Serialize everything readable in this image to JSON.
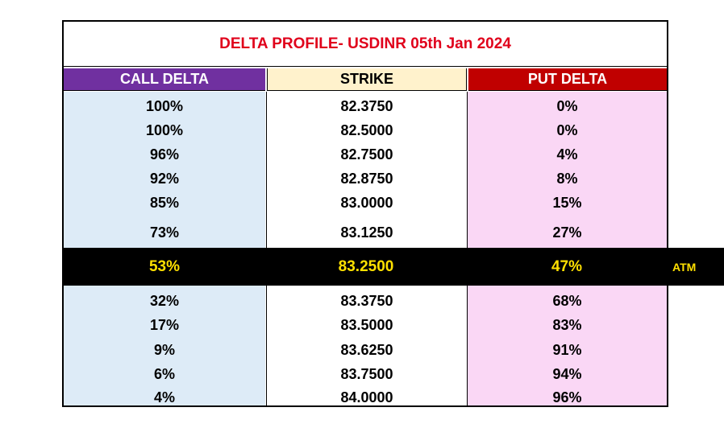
{
  "title": "DELTA PROFILE- USDINR 05th  Jan 2024",
  "headers": {
    "call": "CALL DELTA",
    "strike": "STRIKE",
    "put": "PUT DELTA"
  },
  "rows_above": [
    {
      "call": "100%",
      "strike": "82.3750",
      "put": "0%"
    },
    {
      "call": "100%",
      "strike": "82.5000",
      "put": "0%"
    },
    {
      "call": "96%",
      "strike": "82.7500",
      "put": "4%"
    },
    {
      "call": "92%",
      "strike": "82.8750",
      "put": "8%"
    },
    {
      "call": "85%",
      "strike": "83.0000",
      "put": "15%"
    },
    {
      "call": "73%",
      "strike": "83.1250",
      "put": "27%"
    }
  ],
  "atm_row": {
    "call": "53%",
    "strike": "83.2500",
    "put": "47%",
    "label": "ATM"
  },
  "rows_below": [
    {
      "call": "32%",
      "strike": "83.3750",
      "put": "68%"
    },
    {
      "call": "17%",
      "strike": "83.5000",
      "put": "83%"
    },
    {
      "call": "9%",
      "strike": "83.6250",
      "put": "91%"
    },
    {
      "call": "6%",
      "strike": "83.7500",
      "put": "94%"
    },
    {
      "call": "4%",
      "strike": "84.0000",
      "put": "96%"
    }
  ],
  "colors": {
    "title": "#e0001b",
    "call_header": "#7030a0",
    "strike_header": "#fff2cc",
    "put_header": "#c00000",
    "call_column": "#ddebf7",
    "put_column": "#fad7f5",
    "atm_background": "#000000",
    "atm_text": "#ffe000"
  }
}
